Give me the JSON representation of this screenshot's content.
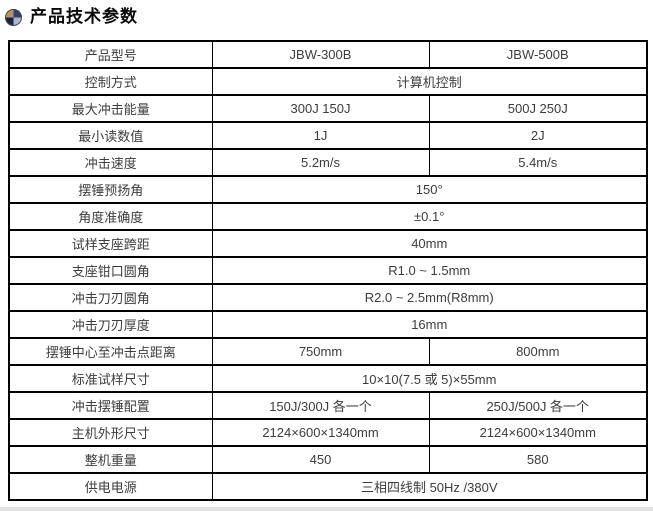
{
  "header": {
    "title": "产品技术参数",
    "icon": {
      "name": "pie-chart-icon",
      "colors": {
        "top_left": "#b5975e",
        "top_right": "#33406e",
        "bottom_left": "#1e2440",
        "bottom_right": "#aeb6d6"
      }
    }
  },
  "table": {
    "border_color": "#000000",
    "text_color": "#3d3d3d",
    "rows": [
      {
        "label": "产品型号",
        "values": [
          "JBW-300B",
          "JBW-500B"
        ]
      },
      {
        "label": "控制方式",
        "values": [
          "计算机控制"
        ]
      },
      {
        "label": "最大冲击能量",
        "values": [
          "300J 150J",
          "500J 250J"
        ]
      },
      {
        "label": "最小读数值",
        "values": [
          "1J",
          "2J"
        ]
      },
      {
        "label": "冲击速度",
        "values": [
          "5.2m/s",
          "5.4m/s"
        ]
      },
      {
        "label": "摆锤预扬角",
        "values": [
          "150°"
        ]
      },
      {
        "label": "角度准确度",
        "values": [
          "±0.1°"
        ]
      },
      {
        "label": "试样支座跨距",
        "values": [
          "40mm"
        ]
      },
      {
        "label": "支座钳口圆角",
        "values": [
          "R1.0 ~ 1.5mm"
        ]
      },
      {
        "label": "冲击刀刃圆角",
        "values": [
          "R2.0 ~ 2.5mm(R8mm)"
        ]
      },
      {
        "label": "冲击刀刃厚度",
        "values": [
          "16mm"
        ]
      },
      {
        "label": "摆锤中心至冲击点距离",
        "values": [
          "750mm",
          "800mm"
        ]
      },
      {
        "label": "标准试样尺寸",
        "values": [
          "10×10(7.5 或 5)×55mm"
        ]
      },
      {
        "label": "冲击摆锤配置",
        "values": [
          "150J/300J 各一个",
          "250J/500J 各一个"
        ]
      },
      {
        "label": "主机外形尺寸",
        "values": [
          "2124×600×1340mm",
          "2124×600×1340mm"
        ]
      },
      {
        "label": "整机重量",
        "values": [
          "450",
          "580"
        ]
      },
      {
        "label": "供电电源",
        "values": [
          "三相四线制 50Hz /380V"
        ]
      }
    ]
  }
}
